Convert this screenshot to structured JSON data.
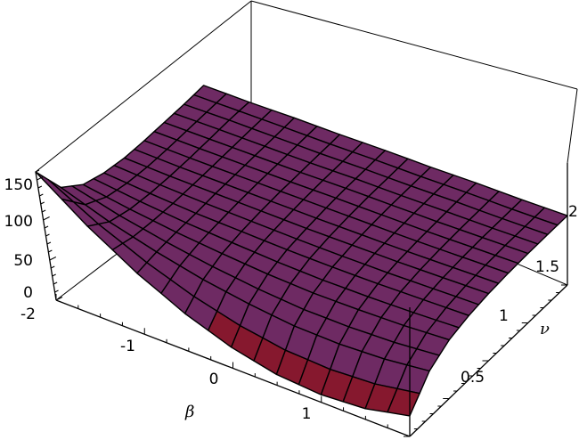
{
  "chart_data": {
    "type": "surface",
    "xlabel": "β",
    "ylabel": "ν",
    "zlabel": "",
    "xlim": [
      -2,
      2
    ],
    "ylim": [
      0,
      2
    ],
    "zlim": [
      0,
      160
    ],
    "x_ticks": [
      "-2",
      "-1",
      "0",
      "1"
    ],
    "y_ticks": [
      "0.5",
      "1",
      "1.5",
      "2"
    ],
    "z_ticks": [
      "0",
      "50",
      "100",
      "150"
    ],
    "x": [
      -2,
      -1.5,
      -1,
      -0.5,
      0,
      0.5,
      1,
      1.5,
      2
    ],
    "y": [
      0,
      0.25,
      0.5,
      0.75,
      1,
      1.25,
      1.5,
      1.75,
      2
    ],
    "z": [
      [
        160,
        114,
        77,
        48,
        27,
        14,
        10,
        14,
        27
      ],
      [
        117,
        96,
        80,
        67,
        58,
        52,
        51,
        54,
        61
      ],
      [
        97,
        88,
        81,
        76,
        72,
        70,
        71,
        73,
        77
      ],
      [
        88,
        84,
        81,
        80,
        79,
        79,
        80,
        82,
        84
      ],
      [
        83,
        82,
        82,
        82,
        82,
        83,
        84,
        86,
        88
      ],
      [
        81,
        81,
        82,
        83,
        84,
        85,
        86,
        88,
        90
      ],
      [
        80,
        81,
        82,
        83,
        85,
        86,
        87,
        89,
        91
      ],
      [
        79,
        81,
        82,
        83,
        85,
        86,
        88,
        89,
        91
      ],
      [
        79,
        80,
        82,
        83,
        85,
        86,
        88,
        89,
        91
      ]
    ],
    "colors": {
      "top": "#8fb4f2",
      "top_light": "#a9c6f6",
      "underside": "#6e2a63",
      "underside_dark": "#86182e",
      "low": "#7fe0e6"
    },
    "box": true,
    "grid": false
  }
}
